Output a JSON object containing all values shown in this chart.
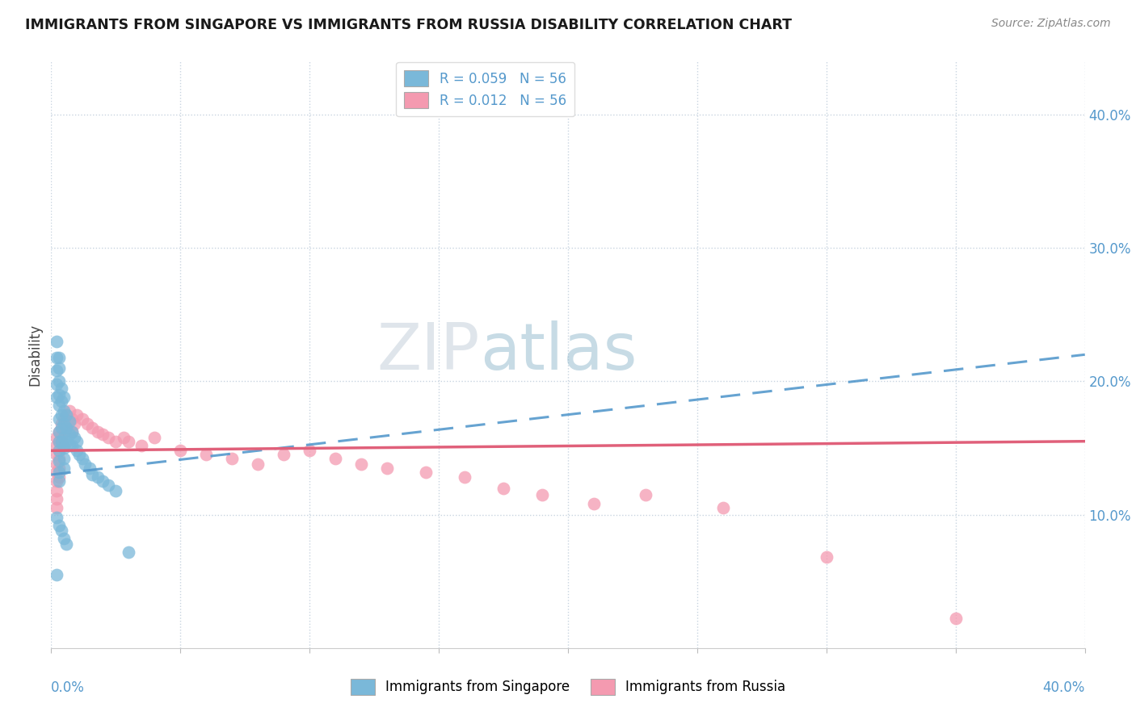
{
  "title": "IMMIGRANTS FROM SINGAPORE VS IMMIGRANTS FROM RUSSIA DISABILITY CORRELATION CHART",
  "source_text": "Source: ZipAtlas.com",
  "ylabel": "Disability",
  "xlim": [
    0.0,
    0.4
  ],
  "ylim": [
    0.0,
    0.44
  ],
  "singapore_color": "#7ab8d9",
  "russia_color": "#f49ab0",
  "singapore_line_color": "#5599cc",
  "russia_line_color": "#e0607a",
  "background_color": "#ffffff",
  "watermark_zip": "ZIP",
  "watermark_atlas": "atlas",
  "sg_legend": "R = 0.059   N = 56",
  "ru_legend": "R = 0.012   N = 56",
  "singapore_x": [
    0.002,
    0.002,
    0.002,
    0.002,
    0.002,
    0.003,
    0.003,
    0.003,
    0.003,
    0.003,
    0.003,
    0.003,
    0.003,
    0.003,
    0.003,
    0.003,
    0.003,
    0.004,
    0.004,
    0.004,
    0.004,
    0.004,
    0.005,
    0.005,
    0.005,
    0.005,
    0.005,
    0.005,
    0.005,
    0.006,
    0.006,
    0.006,
    0.007,
    0.007,
    0.007,
    0.008,
    0.008,
    0.009,
    0.01,
    0.01,
    0.011,
    0.012,
    0.013,
    0.015,
    0.016,
    0.018,
    0.02,
    0.022,
    0.025,
    0.002,
    0.003,
    0.004,
    0.005,
    0.006,
    0.03,
    0.002
  ],
  "singapore_y": [
    0.23,
    0.218,
    0.208,
    0.198,
    0.188,
    0.218,
    0.21,
    0.2,
    0.19,
    0.182,
    0.172,
    0.162,
    0.155,
    0.148,
    0.14,
    0.132,
    0.125,
    0.195,
    0.185,
    0.175,
    0.165,
    0.155,
    0.188,
    0.178,
    0.168,
    0.158,
    0.15,
    0.142,
    0.135,
    0.175,
    0.165,
    0.155,
    0.17,
    0.16,
    0.152,
    0.162,
    0.152,
    0.158,
    0.155,
    0.148,
    0.145,
    0.142,
    0.138,
    0.135,
    0.13,
    0.128,
    0.125,
    0.122,
    0.118,
    0.098,
    0.092,
    0.088,
    0.082,
    0.078,
    0.072,
    0.055
  ],
  "russia_x": [
    0.002,
    0.002,
    0.002,
    0.002,
    0.002,
    0.002,
    0.002,
    0.002,
    0.002,
    0.003,
    0.003,
    0.003,
    0.003,
    0.003,
    0.003,
    0.004,
    0.004,
    0.005,
    0.005,
    0.005,
    0.006,
    0.006,
    0.007,
    0.008,
    0.008,
    0.009,
    0.01,
    0.012,
    0.014,
    0.016,
    0.018,
    0.02,
    0.022,
    0.025,
    0.028,
    0.03,
    0.035,
    0.04,
    0.05,
    0.06,
    0.07,
    0.08,
    0.09,
    0.1,
    0.11,
    0.12,
    0.13,
    0.145,
    0.16,
    0.175,
    0.19,
    0.21,
    0.23,
    0.26,
    0.3,
    0.35
  ],
  "russia_y": [
    0.158,
    0.152,
    0.145,
    0.138,
    0.132,
    0.125,
    0.118,
    0.112,
    0.105,
    0.162,
    0.155,
    0.148,
    0.142,
    0.135,
    0.128,
    0.168,
    0.158,
    0.172,
    0.162,
    0.152,
    0.175,
    0.165,
    0.178,
    0.172,
    0.162,
    0.168,
    0.175,
    0.172,
    0.168,
    0.165,
    0.162,
    0.16,
    0.158,
    0.155,
    0.158,
    0.155,
    0.152,
    0.158,
    0.148,
    0.145,
    0.142,
    0.138,
    0.145,
    0.148,
    0.142,
    0.138,
    0.135,
    0.132,
    0.128,
    0.12,
    0.115,
    0.108,
    0.115,
    0.105,
    0.068,
    0.022
  ]
}
